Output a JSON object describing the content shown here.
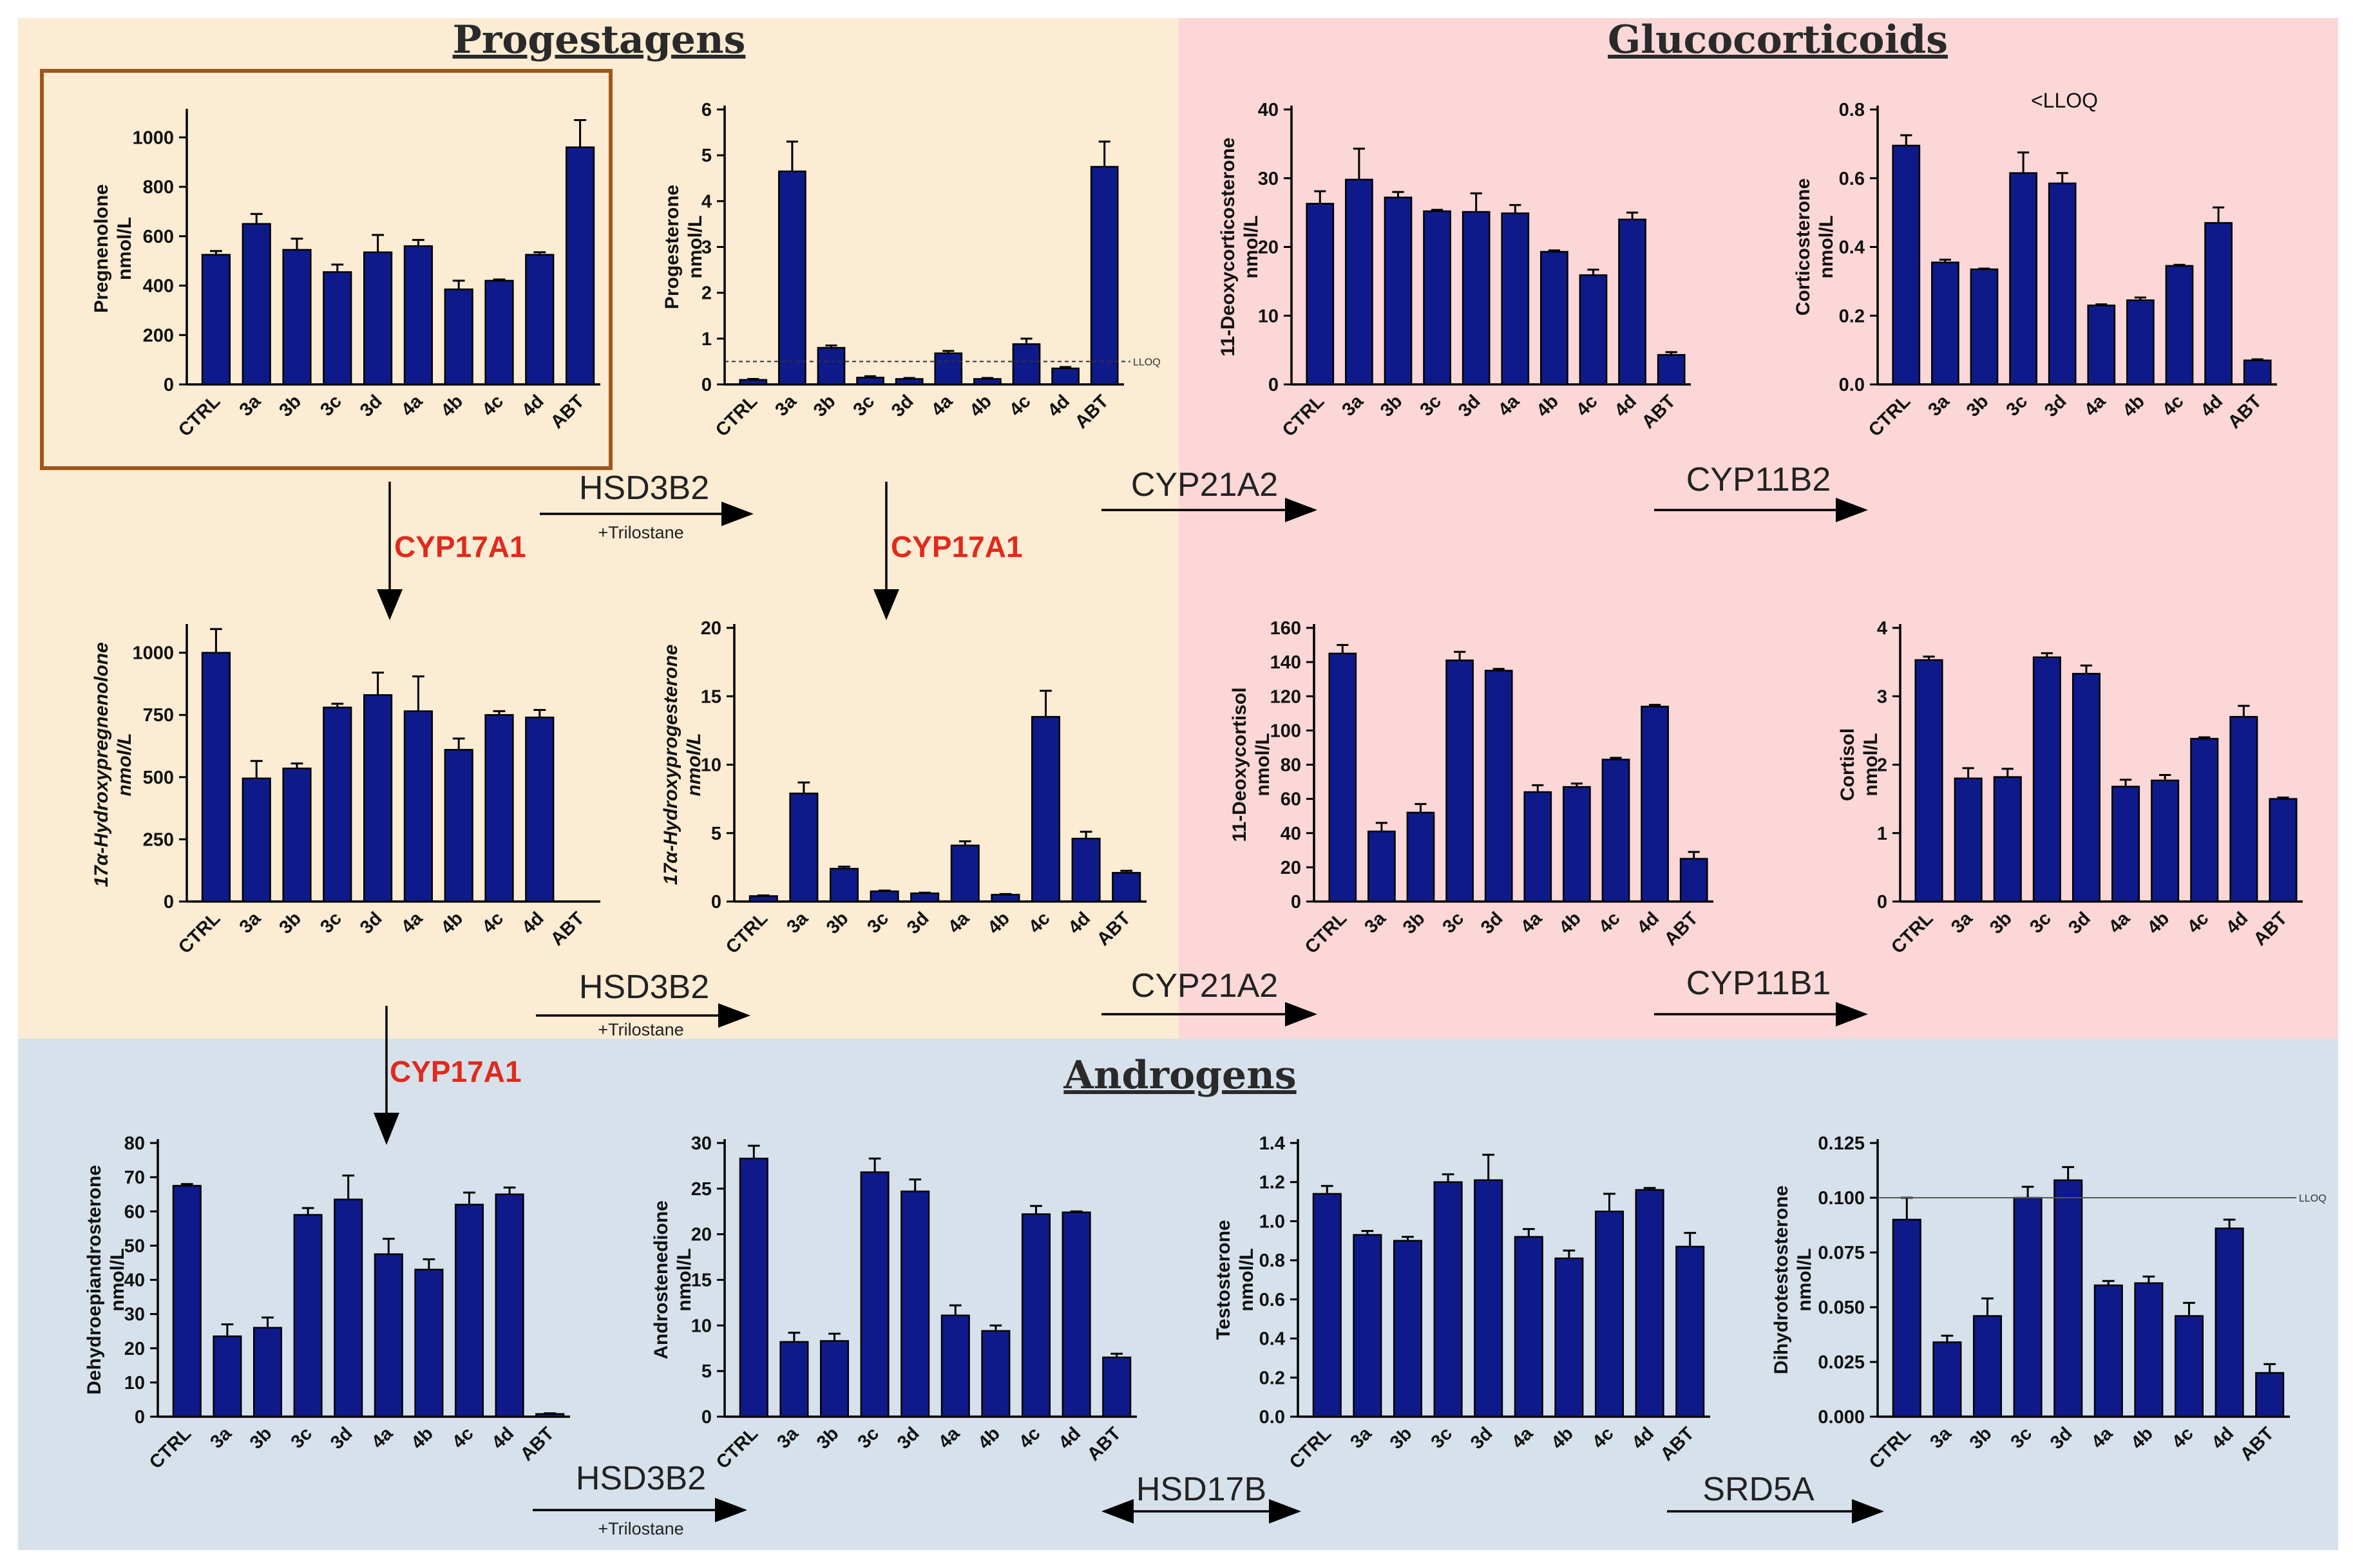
{
  "colors": {
    "progestagens_bg": "#fbecd3",
    "glucocorticoids_bg": "#fbd7d7",
    "androgens_bg": "#d6e1eb",
    "bar": "#0f1a8a",
    "highlight_box": "#a0561a",
    "enzyme_red": "#e02a1b"
  },
  "sections": {
    "progestagens": "Progestagens",
    "glucocorticoids": "Glucocorticoids",
    "androgens": "Androgens"
  },
  "enzymes": {
    "hsd3b2_1": "HSD3B2",
    "trilostane_1": "+Trilostane",
    "hsd3b2_2": "HSD3B2",
    "trilostane_2": "+Trilostane",
    "hsd3b2_3": "HSD3B2",
    "trilostane_3": "+Trilostane",
    "cyp17a1_1": "CYP17A1",
    "cyp17a1_2": "CYP17A1",
    "cyp17a1_3": "CYP17A1",
    "cyp21a2_1": "CYP21A2",
    "cyp21a2_2": "CYP21A2",
    "cyp11b2": "CYP11B2",
    "cyp11b1": "CYP11B1",
    "hsd17b": "HSD17B",
    "srd5a": "SRD5A"
  },
  "chart_data": [
    {
      "id": "pregnenolone",
      "type": "bar",
      "ylabel": [
        "Pregnenolone",
        "nmol/L"
      ],
      "ylabel_italic": false,
      "categories": [
        "CTRL",
        "3a",
        "3b",
        "3c",
        "3d",
        "4a",
        "4b",
        "4c",
        "4d",
        "ABT"
      ],
      "values": [
        525,
        650,
        545,
        455,
        535,
        560,
        385,
        420,
        525,
        960
      ],
      "errors": [
        15,
        40,
        45,
        30,
        70,
        25,
        35,
        5,
        10,
        110
      ],
      "ylim": [
        0,
        1100
      ],
      "yticks": [
        0,
        200,
        400,
        600,
        800,
        1000
      ],
      "ytick_labels": [
        "0",
        "200",
        "400",
        "600",
        "800",
        "1000"
      ]
    },
    {
      "id": "progesterone",
      "type": "bar",
      "ylabel": [
        "Progesterone",
        "nmol/L"
      ],
      "ylabel_italic": false,
      "categories": [
        "CTRL",
        "3a",
        "3b",
        "3c",
        "3d",
        "4a",
        "4b",
        "4c",
        "4d",
        "ABT"
      ],
      "values": [
        0.1,
        4.65,
        0.8,
        0.15,
        0.12,
        0.68,
        0.12,
        0.88,
        0.35,
        4.75
      ],
      "errors": [
        0.02,
        0.65,
        0.05,
        0.03,
        0.02,
        0.05,
        0.02,
        0.12,
        0.03,
        0.55
      ],
      "ylim": [
        0,
        6
      ],
      "yticks": [
        0,
        1,
        2,
        3,
        4,
        5,
        6
      ],
      "ytick_labels": [
        "0",
        "1",
        "2",
        "3",
        "4",
        "5",
        "6"
      ],
      "lloq": {
        "value": 0.5,
        "label": "LLOQ"
      }
    },
    {
      "id": "deoxycorticosterone",
      "type": "bar",
      "ylabel": [
        "11-Deoxycorticosterone",
        "nmol/L"
      ],
      "ylabel_italic": false,
      "categories": [
        "CTRL",
        "3a",
        "3b",
        "3c",
        "3d",
        "4a",
        "4b",
        "4c",
        "4d",
        "ABT"
      ],
      "values": [
        26.3,
        29.8,
        27.2,
        25.2,
        25.1,
        24.9,
        19.3,
        15.9,
        24.0,
        4.3
      ],
      "errors": [
        1.8,
        4.5,
        0.8,
        0.2,
        2.7,
        1.2,
        0.2,
        0.8,
        1.0,
        0.4
      ],
      "ylim": [
        0,
        40
      ],
      "yticks": [
        0,
        10,
        20,
        30,
        40
      ],
      "ytick_labels": [
        "0",
        "10",
        "20",
        "30",
        "40"
      ]
    },
    {
      "id": "corticosterone",
      "type": "bar",
      "ylabel": [
        "Corticosterone",
        "nmol/L"
      ],
      "ylabel_italic": false,
      "categories": [
        "CTRL",
        "3a",
        "3b",
        "3c",
        "3d",
        "4a",
        "4b",
        "4c",
        "4d",
        "ABT"
      ],
      "values": [
        0.695,
        0.355,
        0.335,
        0.615,
        0.585,
        0.23,
        0.245,
        0.345,
        0.47,
        0.07
      ],
      "errors": [
        0.03,
        0.008,
        0.002,
        0.06,
        0.03,
        0.003,
        0.008,
        0.003,
        0.045,
        0.003
      ],
      "ylim": [
        0,
        0.8
      ],
      "yticks": [
        0,
        0.2,
        0.4,
        0.6,
        0.8
      ],
      "ytick_labels": [
        "0.0",
        "0.2",
        "0.4",
        "0.6",
        "0.8"
      ],
      "note": "<LLOQ"
    },
    {
      "id": "hydroxypregnenolone",
      "type": "bar",
      "ylabel": [
        "17α-Hydroxypregnenolone",
        "nmol/L"
      ],
      "ylabel_italic": true,
      "categories": [
        "CTRL",
        "3a",
        "3b",
        "3c",
        "3d",
        "4a",
        "4b",
        "4c",
        "4d",
        "ABT"
      ],
      "values": [
        1000,
        495,
        535,
        780,
        830,
        765,
        610,
        750,
        740,
        0
      ],
      "errors": [
        95,
        70,
        20,
        15,
        90,
        140,
        45,
        15,
        30,
        0
      ],
      "ylim": [
        0,
        1100
      ],
      "yticks": [
        0,
        250,
        500,
        750,
        1000
      ],
      "ytick_labels": [
        "0",
        "250",
        "500",
        "750",
        "1000"
      ]
    },
    {
      "id": "hydroxyprogesterone",
      "type": "bar",
      "ylabel": [
        "17α-Hydroxyprogesterone",
        "nmol/L"
      ],
      "ylabel_italic": true,
      "categories": [
        "CTRL",
        "3a",
        "3b",
        "3c",
        "3d",
        "4a",
        "4b",
        "4c",
        "4d",
        "ABT"
      ],
      "values": [
        0.4,
        7.9,
        2.4,
        0.75,
        0.6,
        4.1,
        0.5,
        13.5,
        4.6,
        2.1
      ],
      "errors": [
        0.05,
        0.8,
        0.15,
        0.05,
        0.05,
        0.3,
        0.05,
        1.9,
        0.5,
        0.15
      ],
      "ylim": [
        0,
        20
      ],
      "yticks": [
        0,
        5,
        10,
        15,
        20
      ],
      "ytick_labels": [
        "0",
        "5",
        "10",
        "15",
        "20"
      ]
    },
    {
      "id": "deoxycortisol",
      "type": "bar",
      "ylabel": [
        "11-Deoxycortisol",
        "nmol/L"
      ],
      "ylabel_italic": false,
      "categories": [
        "CTRL",
        "3a",
        "3b",
        "3c",
        "3d",
        "4a",
        "4b",
        "4c",
        "4d",
        "ABT"
      ],
      "values": [
        145,
        41,
        52,
        141,
        135,
        64,
        67,
        83,
        114,
        25
      ],
      "errors": [
        5,
        5,
        5,
        5,
        1,
        4,
        2,
        1,
        1,
        4
      ],
      "ylim": [
        0,
        160
      ],
      "yticks": [
        0,
        20,
        40,
        60,
        80,
        100,
        120,
        140,
        160
      ],
      "ytick_labels": [
        "0",
        "20",
        "40",
        "60",
        "80",
        "100",
        "120",
        "140",
        "160"
      ]
    },
    {
      "id": "cortisol",
      "type": "bar",
      "ylabel": [
        "Cortisol",
        "nmol/L"
      ],
      "ylabel_italic": false,
      "categories": [
        "CTRL",
        "3a",
        "3b",
        "3c",
        "3d",
        "4a",
        "4b",
        "4c",
        "4d",
        "ABT"
      ],
      "values": [
        3.53,
        1.8,
        1.82,
        3.57,
        3.33,
        1.68,
        1.77,
        2.38,
        2.7,
        1.5
      ],
      "errors": [
        0.05,
        0.15,
        0.12,
        0.06,
        0.12,
        0.1,
        0.08,
        0.02,
        0.16,
        0.02
      ],
      "ylim": [
        0,
        4
      ],
      "yticks": [
        0,
        1,
        2,
        3,
        4
      ],
      "ytick_labels": [
        "0",
        "1",
        "2",
        "3",
        "4"
      ]
    },
    {
      "id": "dhea",
      "type": "bar",
      "ylabel": [
        "Dehydroepiandrosterone",
        "nmol/L"
      ],
      "ylabel_italic": false,
      "categories": [
        "CTRL",
        "3a",
        "3b",
        "3c",
        "3d",
        "4a",
        "4b",
        "4c",
        "4d",
        "ABT"
      ],
      "values": [
        67.5,
        23.5,
        26,
        59,
        63.5,
        47.5,
        43,
        62,
        65,
        0.8
      ],
      "errors": [
        0.5,
        3.5,
        3,
        2,
        7,
        4.5,
        3,
        3.5,
        2,
        0.2
      ],
      "ylim": [
        0,
        80
      ],
      "yticks": [
        0,
        10,
        20,
        30,
        40,
        50,
        60,
        70,
        80
      ],
      "ytick_labels": [
        "0",
        "10",
        "20",
        "30",
        "40",
        "50",
        "60",
        "70",
        "80"
      ]
    },
    {
      "id": "androstenedione",
      "type": "bar",
      "ylabel": [
        "Androstenedione",
        "nmol/L"
      ],
      "ylabel_italic": false,
      "categories": [
        "CTRL",
        "3a",
        "3b",
        "3c",
        "3d",
        "4a",
        "4b",
        "4c",
        "4d",
        "ABT"
      ],
      "values": [
        28.3,
        8.2,
        8.3,
        26.8,
        24.7,
        11.1,
        9.4,
        22.2,
        22.4,
        6.5
      ],
      "errors": [
        1.4,
        1,
        0.8,
        1.5,
        1.3,
        1.1,
        0.6,
        0.9,
        0.1,
        0.4
      ],
      "ylim": [
        0,
        30
      ],
      "yticks": [
        0,
        5,
        10,
        15,
        20,
        25,
        30
      ],
      "ytick_labels": [
        "0",
        "5",
        "10",
        "15",
        "20",
        "25",
        "30"
      ]
    },
    {
      "id": "testosterone",
      "type": "bar",
      "ylabel": [
        "Testosterone",
        "nmol/L"
      ],
      "ylabel_italic": false,
      "categories": [
        "CTRL",
        "3a",
        "3b",
        "3c",
        "3d",
        "4a",
        "4b",
        "4c",
        "4d",
        "ABT"
      ],
      "values": [
        1.14,
        0.93,
        0.9,
        1.2,
        1.21,
        0.92,
        0.81,
        1.05,
        1.16,
        0.87
      ],
      "errors": [
        0.04,
        0.02,
        0.02,
        0.04,
        0.13,
        0.04,
        0.04,
        0.09,
        0.01,
        0.07
      ],
      "ylim": [
        0,
        1.4
      ],
      "yticks": [
        0,
        0.2,
        0.4,
        0.6,
        0.8,
        1.0,
        1.2,
        1.4
      ],
      "ytick_labels": [
        "0.0",
        "0.2",
        "0.4",
        "0.6",
        "0.8",
        "1.0",
        "1.2",
        "1.4"
      ]
    },
    {
      "id": "dht",
      "type": "bar",
      "ylabel": [
        "Dihydrotestosterone",
        "nmol/L"
      ],
      "ylabel_italic": false,
      "categories": [
        "CTRL",
        "3a",
        "3b",
        "3c",
        "3d",
        "4a",
        "4b",
        "4c",
        "4d",
        "ABT"
      ],
      "values": [
        0.09,
        0.034,
        0.046,
        0.1,
        0.108,
        0.06,
        0.061,
        0.046,
        0.086,
        0.02
      ],
      "errors": [
        0.01,
        0.003,
        0.008,
        0.005,
        0.006,
        0.002,
        0.003,
        0.006,
        0.004,
        0.004
      ],
      "ylim": [
        0,
        0.125
      ],
      "yticks": [
        0,
        0.025,
        0.05,
        0.075,
        0.1,
        0.125
      ],
      "ytick_labels": [
        "0.000",
        "0.025",
        "0.050",
        "0.075",
        "0.100",
        "0.125"
      ],
      "lloq": {
        "value": 0.1,
        "label": "LLOQ",
        "solid": true
      }
    }
  ]
}
